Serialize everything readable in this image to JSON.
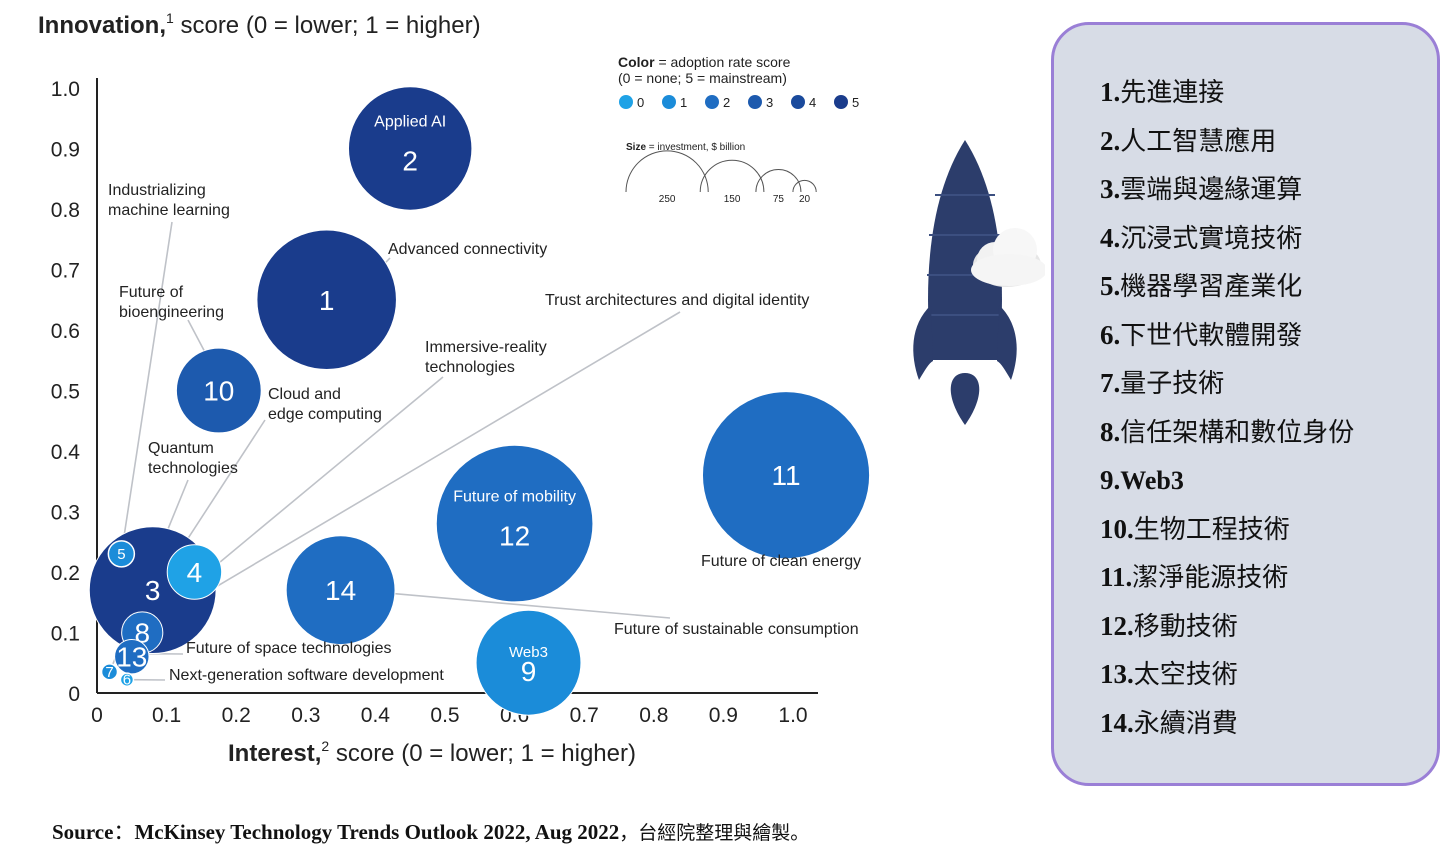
{
  "chart_title_bold": "Innovation,",
  "chart_title_sup": "1",
  "chart_title_rest": " score (0 = lower; 1 = higher)",
  "x_title_bold": "Interest,",
  "x_title_sup": "2",
  "x_title_rest": " score (0 = lower; 1 = higher)",
  "chart_data": {
    "type": "scatter",
    "xlim": [
      0,
      1.0
    ],
    "ylim": [
      0,
      1.0
    ],
    "x_ticks": [
      "0",
      "0.1",
      "0.2",
      "0.3",
      "0.4",
      "0.5",
      "0.6",
      "0.7",
      "0.8",
      "0.9",
      "1.0"
    ],
    "y_ticks": [
      "0",
      "0.1",
      "0.2",
      "0.3",
      "0.4",
      "0.5",
      "0.6",
      "0.7",
      "0.8",
      "0.9",
      "1.0"
    ],
    "color_legend": {
      "title_bold": "Color",
      "title_rest": " = adoption rate score",
      "subtitle": "(0 = none; 5 = mainstream)",
      "levels": [
        "0",
        "1",
        "2",
        "3",
        "4",
        "5"
      ],
      "colors": [
        "#1fa2e6",
        "#1b8cd9",
        "#1f6dc2",
        "#1d5aae",
        "#1a4a9c",
        "#1a3c8c"
      ]
    },
    "size_legend": {
      "title_bold": "Size",
      "title_rest": " = investment, $ billion",
      "values": [
        "250",
        "150",
        "75",
        "20"
      ]
    },
    "bubbles": [
      {
        "id": "2",
        "x": 0.45,
        "y": 0.9,
        "investment": 180,
        "adoption": 5,
        "inner_label": "Applied AI",
        "label": ""
      },
      {
        "id": "1",
        "x": 0.33,
        "y": 0.65,
        "investment": 230,
        "adoption": 5,
        "inner_label": "",
        "label": "Advanced connectivity"
      },
      {
        "id": "10",
        "x": 0.175,
        "y": 0.5,
        "investment": 85,
        "adoption": 3,
        "inner_label": "",
        "label": "Future of bioengineering"
      },
      {
        "id": "11",
        "x": 0.99,
        "y": 0.36,
        "investment": 330,
        "adoption": 2,
        "inner_label": "",
        "label": "Future of clean energy"
      },
      {
        "id": "12",
        "x": 0.6,
        "y": 0.28,
        "investment": 290,
        "adoption": 2,
        "inner_label": "Future of mobility",
        "label": ""
      },
      {
        "id": "14",
        "x": 0.35,
        "y": 0.17,
        "investment": 140,
        "adoption": 2,
        "inner_label": "",
        "label": "Future of sustainable consumption"
      },
      {
        "id": "9",
        "x": 0.62,
        "y": 0.05,
        "investment": 130,
        "adoption": 1,
        "inner_label": "Web3",
        "label": ""
      },
      {
        "id": "3",
        "x": 0.08,
        "y": 0.17,
        "investment": 190,
        "adoption": 5,
        "inner_label": "",
        "label": "Cloud and edge computing"
      },
      {
        "id": "4",
        "x": 0.14,
        "y": 0.2,
        "investment": 35,
        "adoption": 0,
        "inner_label": "",
        "label": "Immersive-reality technologies"
      },
      {
        "id": "5",
        "x": 0.035,
        "y": 0.23,
        "investment": 8,
        "adoption": 1,
        "inner_label": "",
        "label": "Industrializing machine learning"
      },
      {
        "id": "8",
        "x": 0.065,
        "y": 0.1,
        "investment": 20,
        "adoption": 2,
        "inner_label": "",
        "label": "Trust architectures and digital identity"
      },
      {
        "id": "13",
        "x": 0.05,
        "y": 0.06,
        "investment": 14,
        "adoption": 2,
        "inner_label": "",
        "label": "Future of space technologies"
      },
      {
        "id": "7",
        "x": 0.018,
        "y": 0.035,
        "investment": 3,
        "adoption": 1,
        "inner_label": "",
        "label": "Quantum technologies"
      },
      {
        "id": "6",
        "x": 0.043,
        "y": 0.022,
        "investment": 2,
        "adoption": 0,
        "inner_label": "",
        "label": "Next-generation software development"
      }
    ]
  },
  "legend_items": [
    {
      "num": "1.",
      "name": "先進連接"
    },
    {
      "num": "2.",
      "name": "人工智慧應用"
    },
    {
      "num": "3.",
      "name": "雲端與邊緣運算"
    },
    {
      "num": "4.",
      "name": "沉浸式實境技術"
    },
    {
      "num": "5.",
      "name": "機器學習產業化"
    },
    {
      "num": "6.",
      "name": "下世代軟體開發"
    },
    {
      "num": "7.",
      "name": "量子技術"
    },
    {
      "num": "8.",
      "name": "信任架構和數位身份"
    },
    {
      "num": "9.",
      "name": "Web3"
    },
    {
      "num": "10.",
      "name": "生物工程技術"
    },
    {
      "num": "11.",
      "name": "潔淨能源技術"
    },
    {
      "num": "12.",
      "name": "移動技術"
    },
    {
      "num": "13.",
      "name": "太空技術"
    },
    {
      "num": "14.",
      "name": "永續消費"
    }
  ],
  "source_label": "Source",
  "source_sep": "：",
  "source_text": "McKinsey Technology Trends Outlook 2022, Aug 2022",
  "source_suffix": "，台經院整理與繪製。",
  "colors": {
    "panel_border": "#9a7fd6",
    "panel_bg": "#d7dce6",
    "rocket": "#2c3d6b"
  }
}
